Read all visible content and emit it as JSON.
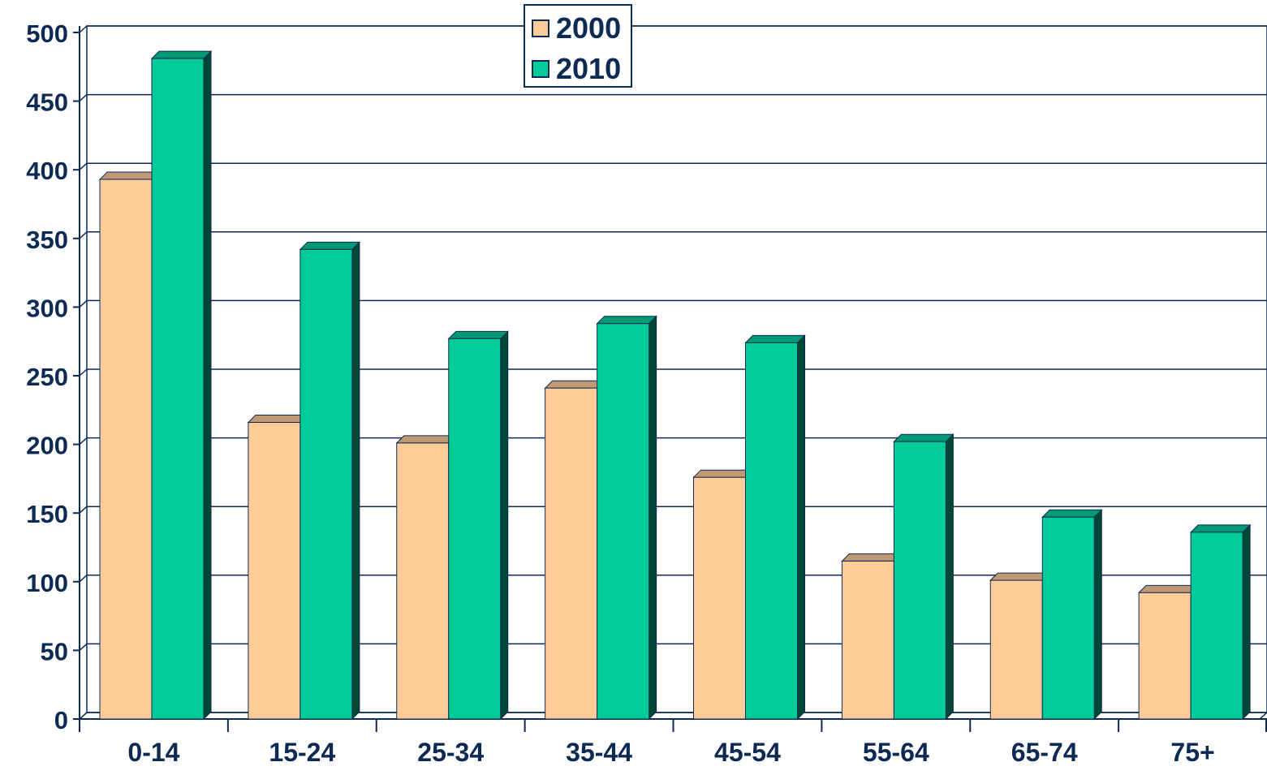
{
  "chart_data": {
    "type": "bar",
    "title": "",
    "xlabel": "",
    "ylabel": "",
    "categories": [
      "0-14",
      "15-24",
      "25-34",
      "35-44",
      "45-54",
      "55-64",
      "65-74",
      "75+"
    ],
    "series": [
      {
        "name": "2000",
        "color": "#ffcc99",
        "values": [
          393,
          216,
          201,
          241,
          176,
          115,
          101,
          92
        ]
      },
      {
        "name": "2010",
        "color": "#00cc99",
        "values": [
          481,
          342,
          277,
          288,
          274,
          202,
          147,
          136
        ]
      }
    ],
    "ylim": [
      0,
      500
    ],
    "yticks": [
      0,
      50,
      100,
      150,
      200,
      250,
      300,
      350,
      400,
      450,
      500
    ],
    "grid": true,
    "legend_position": "top-center"
  }
}
